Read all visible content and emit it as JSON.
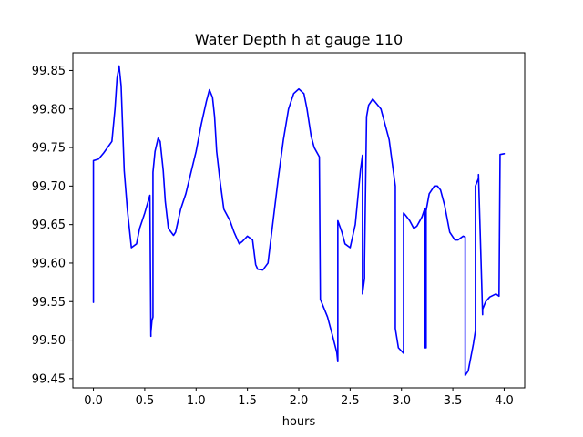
{
  "chart_data": {
    "type": "line",
    "title": "Water Depth h at gauge 110",
    "xlabel": "hours",
    "ylabel": "",
    "xlim": [
      -0.2,
      4.2
    ],
    "ylim": [
      99.438,
      99.873
    ],
    "xticks": [
      0.0,
      0.5,
      1.0,
      1.5,
      2.0,
      2.5,
      3.0,
      3.5,
      4.0
    ],
    "xtick_labels": [
      "0.0",
      "0.5",
      "1.0",
      "1.5",
      "2.0",
      "2.5",
      "3.0",
      "3.5",
      "4.0"
    ],
    "yticks": [
      99.45,
      99.5,
      99.55,
      99.6,
      99.65,
      99.7,
      99.75,
      99.8,
      99.85
    ],
    "ytick_labels": [
      "99.45",
      "99.50",
      "99.55",
      "99.60",
      "99.65",
      "99.70",
      "99.75",
      "99.80",
      "99.85"
    ],
    "grid": false,
    "legend": "none",
    "series": [
      {
        "color": "#0000ff",
        "x": [
          0.0,
          0.0,
          0.05,
          0.1,
          0.18,
          0.21,
          0.23,
          0.25,
          0.27,
          0.3,
          0.33,
          0.37,
          0.42,
          0.45,
          0.5,
          0.55,
          0.56,
          0.56,
          0.57,
          0.58,
          0.58,
          0.6,
          0.63,
          0.65,
          0.68,
          0.7,
          0.73,
          0.78,
          0.8,
          0.85,
          0.9,
          1.0,
          1.05,
          1.1,
          1.13,
          1.16,
          1.18,
          1.2,
          1.23,
          1.27,
          1.33,
          1.37,
          1.42,
          1.45,
          1.5,
          1.55,
          1.58,
          1.6,
          1.65,
          1.7,
          1.75,
          1.8,
          1.85,
          1.9,
          1.95,
          2.0,
          2.05,
          2.08,
          2.12,
          2.15,
          2.2,
          2.21,
          2.21,
          2.28,
          2.33,
          2.37,
          2.38,
          2.38,
          2.42,
          2.45,
          2.5,
          2.55,
          2.6,
          2.62,
          2.62,
          2.64,
          2.64,
          2.66,
          2.68,
          2.72,
          2.8,
          2.88,
          2.94,
          2.94,
          2.97,
          3.02,
          3.02,
          3.04,
          3.08,
          3.12,
          3.15,
          3.2,
          3.22,
          3.23,
          3.23,
          3.24,
          3.24,
          3.27,
          3.32,
          3.35,
          3.38,
          3.42,
          3.47,
          3.52,
          3.55,
          3.6,
          3.62,
          3.62,
          3.65,
          3.7,
          3.72,
          3.72,
          3.75,
          3.75,
          3.79,
          3.79,
          3.82,
          3.86,
          3.92,
          3.95,
          3.96,
          3.96,
          4.0
        ],
        "values": [
          99.549,
          99.733,
          99.735,
          99.743,
          99.758,
          99.8,
          99.84,
          99.856,
          99.83,
          99.72,
          99.67,
          99.62,
          99.625,
          99.645,
          99.665,
          99.688,
          99.505,
          99.51,
          99.525,
          99.53,
          99.718,
          99.745,
          99.762,
          99.758,
          99.72,
          99.68,
          99.645,
          99.636,
          99.64,
          99.67,
          99.69,
          99.745,
          99.78,
          99.81,
          99.825,
          99.815,
          99.79,
          99.745,
          99.71,
          99.67,
          99.655,
          99.64,
          99.625,
          99.628,
          99.635,
          99.63,
          99.598,
          99.592,
          99.591,
          99.6,
          99.655,
          99.71,
          99.76,
          99.8,
          99.82,
          99.826,
          99.82,
          99.8,
          99.765,
          99.75,
          99.738,
          99.555,
          99.553,
          99.53,
          99.505,
          99.484,
          99.472,
          99.655,
          99.64,
          99.625,
          99.62,
          99.65,
          99.72,
          99.74,
          99.56,
          99.58,
          99.6,
          99.79,
          99.805,
          99.813,
          99.8,
          99.76,
          99.7,
          99.515,
          99.49,
          99.483,
          99.665,
          99.662,
          99.655,
          99.645,
          99.648,
          99.66,
          99.668,
          99.67,
          99.49,
          99.49,
          99.668,
          99.69,
          99.7,
          99.7,
          99.695,
          99.675,
          99.64,
          99.63,
          99.63,
          99.635,
          99.634,
          99.454,
          99.46,
          99.495,
          99.512,
          99.7,
          99.71,
          99.715,
          99.533,
          99.54,
          99.55,
          99.556,
          99.56,
          99.557,
          99.74,
          99.741,
          99.742
        ]
      }
    ]
  }
}
